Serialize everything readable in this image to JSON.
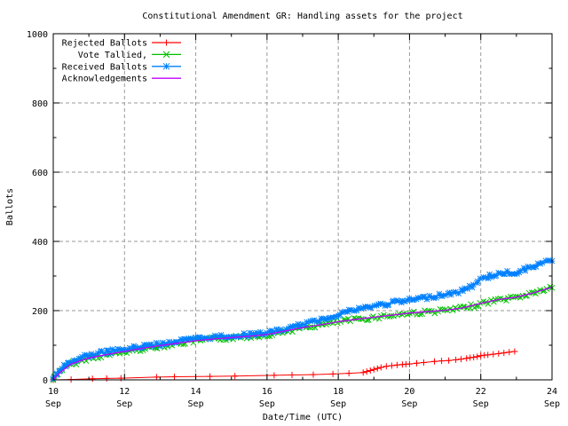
{
  "window": {
    "kind": "plot-image",
    "background": "#ffffff"
  },
  "colors": {
    "text": "#000000",
    "frame": "#000000",
    "grid": "#9a9a9a",
    "background": "#ffffff"
  },
  "chart_data": {
    "type": "line",
    "title": "Constitutional Amendment GR: Handling assets for the project",
    "xlabel": "Date/Time (UTC)",
    "ylabel": "Ballots",
    "xlim": [
      10,
      24
    ],
    "ylim": [
      0,
      1000
    ],
    "grid": true,
    "legend_position": "top-left",
    "x_ticks": [
      {
        "v": 10,
        "label": "10",
        "sub": "Sep"
      },
      {
        "v": 12,
        "label": "12",
        "sub": "Sep"
      },
      {
        "v": 14,
        "label": "14",
        "sub": "Sep"
      },
      {
        "v": 16,
        "label": "16",
        "sub": "Sep"
      },
      {
        "v": 18,
        "label": "18",
        "sub": "Sep"
      },
      {
        "v": 20,
        "label": "20",
        "sub": "Sep"
      },
      {
        "v": 22,
        "label": "22",
        "sub": "Sep"
      },
      {
        "v": 24,
        "label": "24",
        "sub": "Sep"
      }
    ],
    "x_minor_ticks": [
      11,
      13,
      15,
      17,
      19,
      21,
      23
    ],
    "y_ticks": [
      {
        "v": 0,
        "label": "0"
      },
      {
        "v": 200,
        "label": "200"
      },
      {
        "v": 400,
        "label": "400"
      },
      {
        "v": 600,
        "label": "600"
      },
      {
        "v": 800,
        "label": "800"
      },
      {
        "v": 1000,
        "label": "1000"
      }
    ],
    "y_minor_ticks": [
      100,
      300,
      500,
      700,
      900
    ],
    "series": [
      {
        "name": "Rejected Ballots",
        "color": "#ff0000",
        "marker": "plus",
        "marker_mode": "points",
        "line_width": 1,
        "points": [
          [
            10,
            0
          ],
          [
            10.5,
            1
          ],
          [
            11.1,
            3
          ],
          [
            11.5,
            4
          ],
          [
            11.9,
            5
          ],
          [
            12.9,
            8
          ],
          [
            13.4,
            9
          ],
          [
            14.4,
            10
          ],
          [
            15.1,
            11
          ],
          [
            16.2,
            13
          ],
          [
            16.7,
            14
          ],
          [
            17.3,
            15
          ],
          [
            17.85,
            17
          ],
          [
            18.3,
            19
          ],
          [
            18.7,
            21
          ],
          [
            18.8,
            24
          ],
          [
            18.9,
            27
          ],
          [
            19.0,
            30
          ],
          [
            19.1,
            33
          ],
          [
            19.2,
            36
          ],
          [
            19.35,
            39
          ],
          [
            19.5,
            41
          ],
          [
            19.65,
            43
          ],
          [
            19.8,
            44
          ],
          [
            19.9,
            45
          ],
          [
            20.0,
            46
          ],
          [
            20.2,
            48
          ],
          [
            20.4,
            50
          ],
          [
            20.7,
            53
          ],
          [
            20.9,
            55
          ],
          [
            21.1,
            56
          ],
          [
            21.3,
            58
          ],
          [
            21.45,
            60
          ],
          [
            21.6,
            62
          ],
          [
            21.7,
            64
          ],
          [
            21.8,
            65
          ],
          [
            21.9,
            67
          ],
          [
            22.0,
            70
          ],
          [
            22.1,
            71
          ],
          [
            22.2,
            72
          ],
          [
            22.35,
            74
          ],
          [
            22.5,
            76
          ],
          [
            22.65,
            78
          ],
          [
            22.8,
            80
          ],
          [
            22.95,
            82
          ]
        ]
      },
      {
        "name": "Vote Tallied,",
        "color": "#00c000",
        "marker": "cross",
        "marker_mode": "dense",
        "line_width": 1,
        "points": [
          [
            10,
            0
          ],
          [
            10.1,
            15
          ],
          [
            10.2,
            26
          ],
          [
            10.33,
            36
          ],
          [
            10.5,
            45
          ],
          [
            10.75,
            55
          ],
          [
            11,
            62
          ],
          [
            11.5,
            72
          ],
          [
            12,
            80
          ],
          [
            12.5,
            90
          ],
          [
            13,
            97
          ],
          [
            13.5,
            105
          ],
          [
            14,
            112
          ],
          [
            14.5,
            117
          ],
          [
            15,
            121
          ],
          [
            15.5,
            125
          ],
          [
            16,
            130
          ],
          [
            16.5,
            140
          ],
          [
            17,
            150
          ],
          [
            17.5,
            158
          ],
          [
            18,
            167
          ],
          [
            18.5,
            174
          ],
          [
            19,
            180
          ],
          [
            19.5,
            186
          ],
          [
            20,
            192
          ],
          [
            20.5,
            196
          ],
          [
            21,
            200
          ],
          [
            21.5,
            207
          ],
          [
            21.8,
            214
          ],
          [
            22,
            220
          ],
          [
            22.5,
            231
          ],
          [
            23,
            238
          ],
          [
            23.3,
            246
          ],
          [
            23.6,
            255
          ],
          [
            24,
            266
          ]
        ]
      },
      {
        "name": "Received Ballots",
        "color": "#0080ff",
        "marker": "star",
        "marker_mode": "dense",
        "line_width": 1.3,
        "points": [
          [
            10,
            0
          ],
          [
            10.08,
            12
          ],
          [
            10.17,
            25
          ],
          [
            10.25,
            35
          ],
          [
            10.33,
            42
          ],
          [
            10.5,
            52
          ],
          [
            10.67,
            60
          ],
          [
            10.83,
            66
          ],
          [
            11,
            71
          ],
          [
            11.25,
            76
          ],
          [
            11.5,
            80
          ],
          [
            11.75,
            84
          ],
          [
            12,
            88
          ],
          [
            12.25,
            92
          ],
          [
            12.5,
            97
          ],
          [
            12.75,
            100
          ],
          [
            13,
            103
          ],
          [
            13.25,
            108
          ],
          [
            13.5,
            112
          ],
          [
            13.75,
            115
          ],
          [
            14,
            118
          ],
          [
            14.33,
            122
          ],
          [
            14.67,
            125
          ],
          [
            15,
            127
          ],
          [
            15.33,
            129
          ],
          [
            15.67,
            132
          ],
          [
            16,
            136
          ],
          [
            16.33,
            142
          ],
          [
            16.67,
            149
          ],
          [
            17,
            160
          ],
          [
            17.33,
            168
          ],
          [
            17.67,
            178
          ],
          [
            18,
            190
          ],
          [
            18.25,
            197
          ],
          [
            18.5,
            203
          ],
          [
            18.75,
            208
          ],
          [
            19,
            213
          ],
          [
            19.25,
            218
          ],
          [
            19.5,
            222
          ],
          [
            19.75,
            226
          ],
          [
            20,
            230
          ],
          [
            20.25,
            234
          ],
          [
            20.5,
            238
          ],
          [
            20.75,
            243
          ],
          [
            21,
            247
          ],
          [
            21.25,
            251
          ],
          [
            21.5,
            257
          ],
          [
            21.75,
            272
          ],
          [
            22,
            290
          ],
          [
            22.25,
            300
          ],
          [
            22.5,
            306
          ],
          [
            22.75,
            309
          ],
          [
            23,
            311
          ],
          [
            23.25,
            320
          ],
          [
            23.5,
            330
          ],
          [
            23.75,
            337
          ],
          [
            24,
            343
          ]
        ]
      },
      {
        "name": "Acknowledgements",
        "color": "#c000ff",
        "marker": "none",
        "marker_mode": "none",
        "line_width": 1.3,
        "points": [
          [
            10,
            0
          ],
          [
            10.2,
            22
          ],
          [
            10.5,
            46
          ],
          [
            11,
            63
          ],
          [
            11.5,
            73
          ],
          [
            12,
            82
          ],
          [
            12.5,
            91
          ],
          [
            13,
            99
          ],
          [
            13.5,
            106
          ],
          [
            14,
            113
          ],
          [
            14.5,
            118
          ],
          [
            15,
            122
          ],
          [
            15.5,
            126
          ],
          [
            16,
            131
          ],
          [
            16.5,
            141
          ],
          [
            17,
            151
          ],
          [
            17.5,
            159
          ],
          [
            18,
            168
          ],
          [
            18.5,
            175
          ],
          [
            19,
            181
          ],
          [
            19.5,
            187
          ],
          [
            20,
            193
          ],
          [
            20.5,
            197
          ],
          [
            21,
            201
          ],
          [
            21.5,
            208
          ],
          [
            22,
            221
          ],
          [
            22.5,
            232
          ],
          [
            23,
            239
          ],
          [
            23.5,
            252
          ],
          [
            24,
            268
          ]
        ]
      }
    ]
  }
}
